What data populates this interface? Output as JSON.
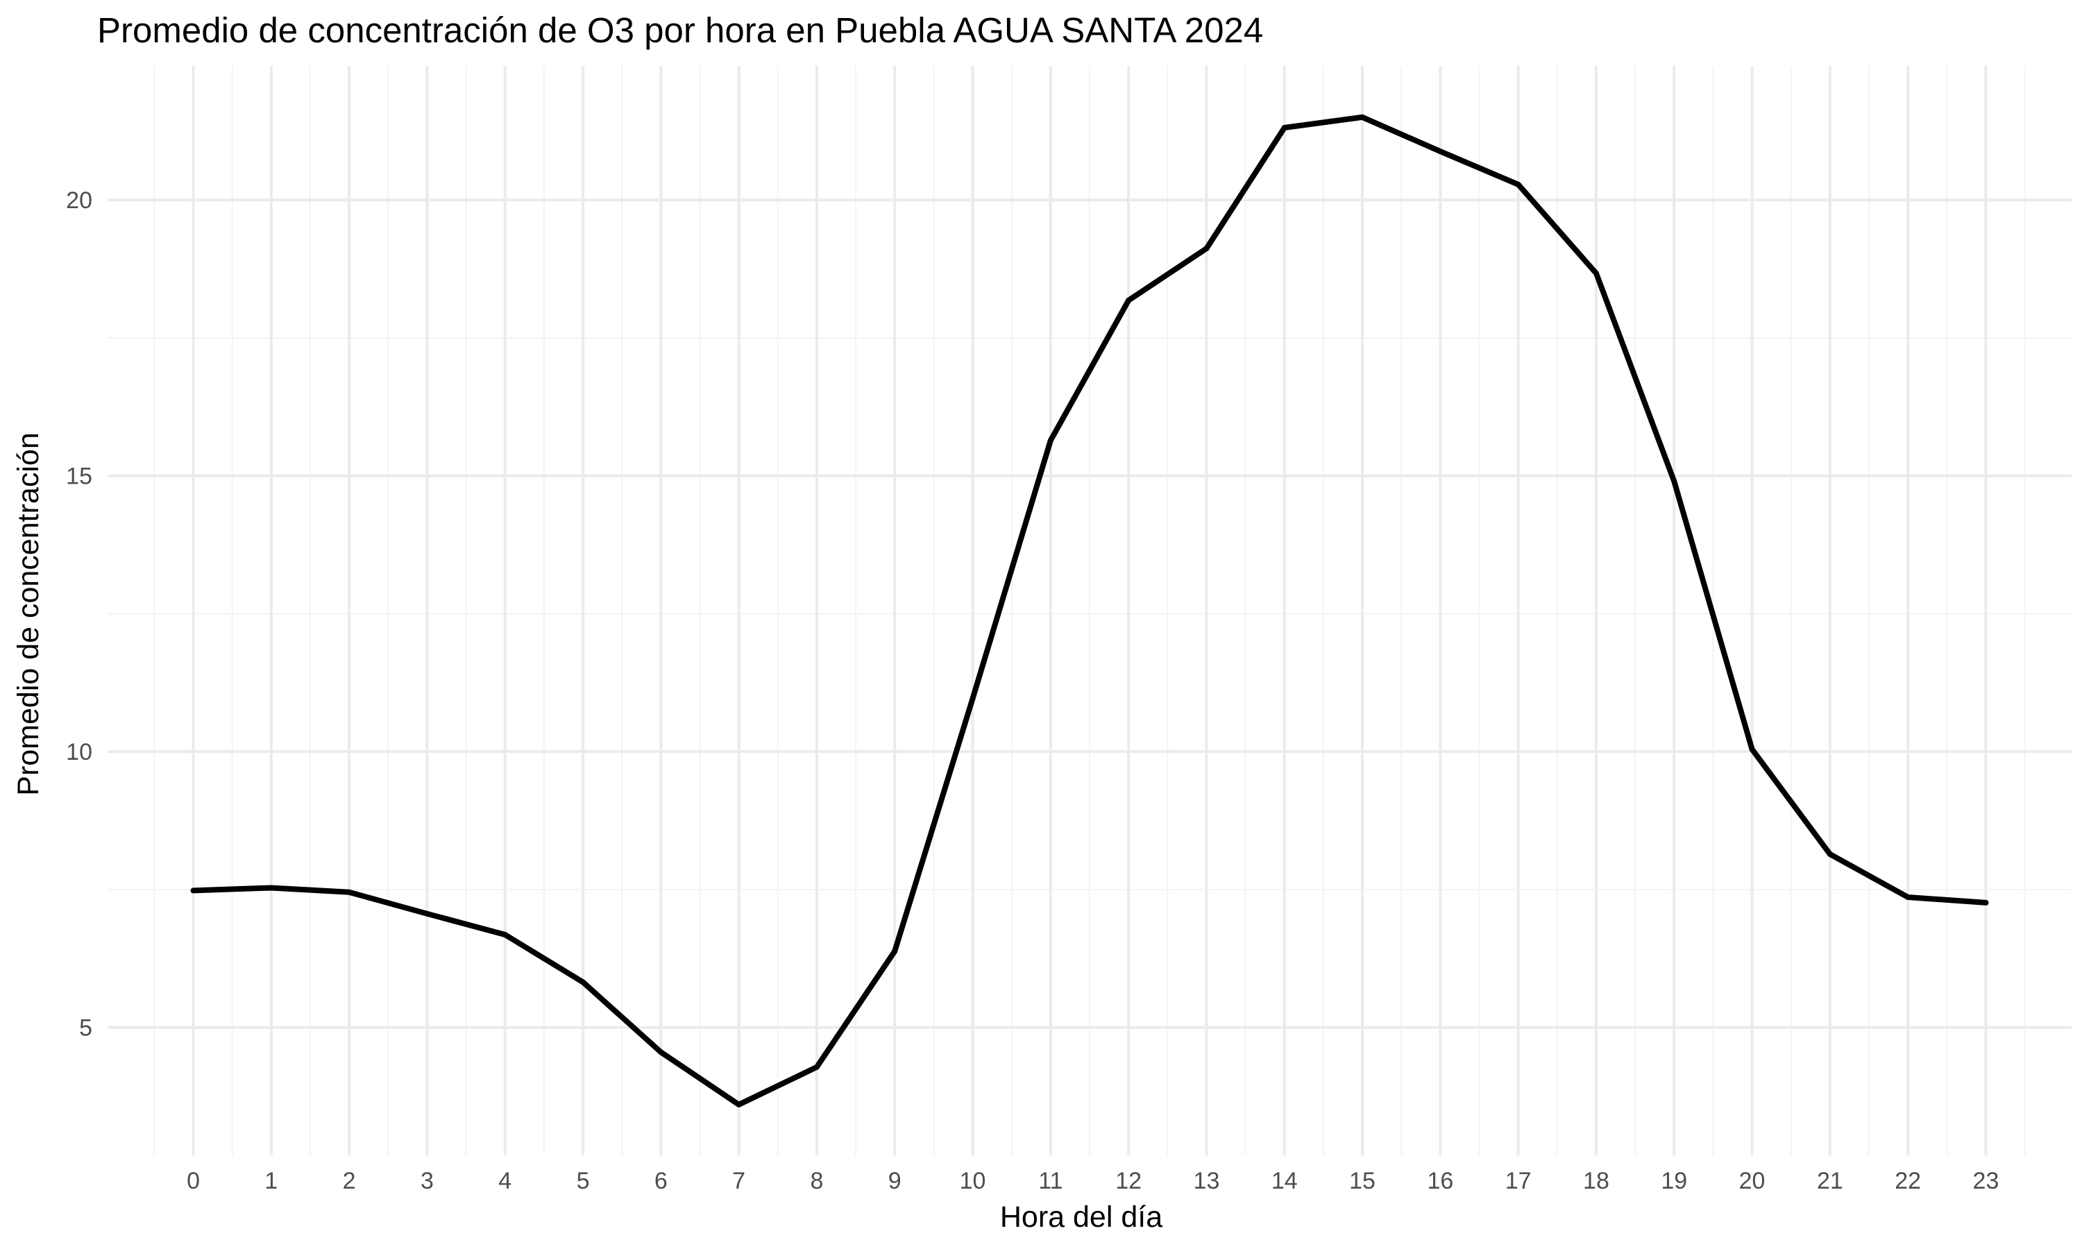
{
  "chart_data": {
    "type": "line",
    "title": "Promedio de concentración de O3 por hora en Puebla AGUA SANTA 2024",
    "xlabel": "Hora del día",
    "ylabel": "Promedio de concentración",
    "x": [
      0,
      1,
      2,
      3,
      4,
      5,
      6,
      7,
      8,
      9,
      10,
      11,
      12,
      13,
      14,
      15,
      16,
      17,
      18,
      19,
      20,
      21,
      22,
      23
    ],
    "x_tick_labels": [
      "0",
      "1",
      "2",
      "3",
      "4",
      "5",
      "6",
      "7",
      "8",
      "9",
      "10",
      "11",
      "12",
      "13",
      "14",
      "15",
      "16",
      "17",
      "18",
      "19",
      "20",
      "21",
      "22",
      "23"
    ],
    "series": [
      {
        "values": [
          7.48,
          7.53,
          7.45,
          7.06,
          6.68,
          5.82,
          4.55,
          3.6,
          4.28,
          6.38,
          10.96,
          15.64,
          18.18,
          19.12,
          21.31,
          21.5,
          20.88,
          20.28,
          18.67,
          14.9,
          10.04,
          8.14,
          7.36,
          7.26
        ],
        "color": "#000000"
      }
    ],
    "y_ticks": [
      5,
      10,
      15,
      20
    ],
    "y_tick_labels": [
      "5",
      "10",
      "15",
      "20"
    ],
    "xlim": [
      -1.1,
      24.1
    ],
    "ylim": [
      2.68,
      22.43
    ],
    "grid": true,
    "legend": "none",
    "colors": {
      "line": "#000000",
      "grid_major": "#ebebeb",
      "grid_minor": "#f3f3f3",
      "background": "#ffffff"
    }
  }
}
